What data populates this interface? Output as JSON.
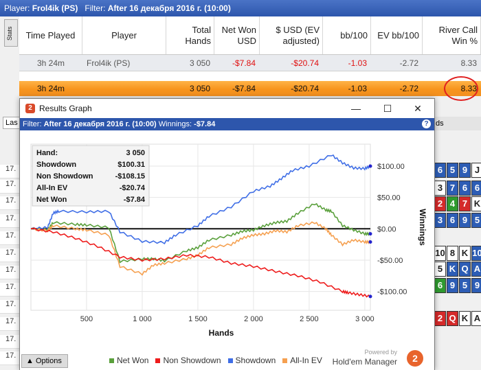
{
  "header": {
    "player_label": "Player:",
    "player": "Frol4ik (PS)",
    "filter_label": "Filter:",
    "filter": "After 16 декабря 2016 г. (10:00)"
  },
  "side_tab": "Stats",
  "stats_table": {
    "columns": [
      "Time Played",
      "Player",
      "Total Hands",
      "Net Won USD",
      "$ USD (EV adjusted)",
      "bb/100",
      "EV bb/100",
      "River Call Win %"
    ],
    "player_row": [
      "3h 24m",
      "Frol4ik (PS)",
      "3 050",
      "-$7.84",
      "-$20.74",
      "-1.03",
      "-2.72",
      "8.33"
    ],
    "total_row": [
      "3h 24m",
      "",
      "3 050",
      "-$7.84",
      "-$20.74",
      "-1.03",
      "-2.72",
      "8.33"
    ]
  },
  "background": {
    "las_label": "Las",
    "row_label": "17.",
    "right_label": "ds",
    "cards": [
      [
        {
          "t": "6",
          "c": "b"
        },
        {
          "t": "5",
          "c": "b"
        },
        {
          "t": "9",
          "c": "b"
        },
        {
          "t": "J",
          "c": "w"
        }
      ],
      [
        {
          "t": "3",
          "c": "w"
        },
        {
          "t": "7",
          "c": "b"
        },
        {
          "t": "6",
          "c": "b"
        },
        {
          "t": "6",
          "c": "b"
        }
      ],
      [
        {
          "t": "2",
          "c": "r"
        },
        {
          "t": "4",
          "c": "g"
        },
        {
          "t": "7",
          "c": "r"
        },
        {
          "t": "K",
          "c": "w"
        }
      ],
      [
        {
          "t": "3",
          "c": "b"
        },
        {
          "t": "6",
          "c": "b"
        },
        {
          "t": "9",
          "c": "b"
        },
        {
          "t": "5",
          "c": "b"
        }
      ],
      [
        {
          "t": "10",
          "c": "w"
        },
        {
          "t": "8",
          "c": "w"
        },
        {
          "t": "K",
          "c": "w"
        },
        {
          "t": "10",
          "c": "b"
        }
      ],
      [
        {
          "t": "5",
          "c": "w"
        },
        {
          "t": "K",
          "c": "b"
        },
        {
          "t": "Q",
          "c": "b"
        },
        {
          "t": "A",
          "c": "b"
        }
      ],
      [
        {
          "t": "6",
          "c": "g"
        },
        {
          "t": "9",
          "c": "b"
        },
        {
          "t": "5",
          "c": "b"
        },
        {
          "t": "9",
          "c": "b"
        }
      ],
      [
        {
          "t": "2",
          "c": "r"
        },
        {
          "t": "Q",
          "c": "r"
        },
        {
          "t": "K",
          "c": "w"
        },
        {
          "t": "A",
          "c": "w"
        }
      ]
    ]
  },
  "results_window": {
    "title": "Results Graph",
    "logo_glyph": "2",
    "controls": [
      "—",
      "☐",
      "✕"
    ],
    "filter_label": "Filter:",
    "filter_value": "After 16 декабря 2016 г. (10:00)",
    "winnings_label": "Winnings:",
    "winnings_value": "-$7.84",
    "help_glyph": "?",
    "summary": [
      {
        "label": "Hand:",
        "value": "3 050"
      },
      {
        "label": "Showdown",
        "value": "$100.31"
      },
      {
        "label": "Non Showdown",
        "value": "-$108.15"
      },
      {
        "label": "All-In EV",
        "value": "-$20.74"
      },
      {
        "label": "Net Won",
        "value": "-$7.84"
      }
    ],
    "options_label": "Options",
    "legend": [
      {
        "name": "Net Won",
        "color": "#5aa03c"
      },
      {
        "name": "Non Showdown",
        "color": "#ee1c1c"
      },
      {
        "name": "Showdown",
        "color": "#3f6ee6"
      },
      {
        "name": "All-In EV",
        "color": "#f5a050"
      }
    ],
    "powered_by": "Powered by",
    "brand_name": "Hold'em Manager",
    "brand_logo": "2"
  },
  "chart_data": {
    "type": "line",
    "xlabel": "Hands",
    "ylabel": "Winnings",
    "xlim": [
      0,
      3050
    ],
    "ylim": [
      -130,
      135
    ],
    "x_ticks": [
      500,
      1000,
      1500,
      2000,
      2500,
      3000
    ],
    "x_tick_labels": [
      "500",
      "1 000",
      "1 500",
      "2 000",
      "2 500",
      "3 000"
    ],
    "y_ticks": [
      100,
      50,
      0,
      -50,
      -100
    ],
    "y_tick_labels": [
      "$100.00",
      "$50.00",
      "$0.00",
      "-$50.00",
      "-$100.00"
    ],
    "series": [
      {
        "name": "Showdown",
        "color": "#3f6ee6",
        "x": [
          0,
          150,
          200,
          250,
          500,
          700,
          800,
          1000,
          1200,
          1300,
          1500,
          1600,
          1800,
          2000,
          2150,
          2250,
          2350,
          2500,
          2700,
          2800,
          2900,
          3000,
          3050
        ],
        "y": [
          0,
          2,
          25,
          28,
          27,
          28,
          -5,
          -20,
          -22,
          -10,
          5,
          20,
          35,
          60,
          68,
          80,
          93,
          100,
          118,
          105,
          97,
          96,
          100
        ]
      },
      {
        "name": "Net Won",
        "color": "#5aa03c",
        "x": [
          0,
          150,
          200,
          400,
          500,
          700,
          800,
          1000,
          1100,
          1200,
          1400,
          1500,
          1600,
          1800,
          1900,
          2000,
          2100,
          2200,
          2300,
          2400,
          2550,
          2650,
          2700,
          2800,
          2900,
          3000,
          3050
        ],
        "y": [
          0,
          -2,
          10,
          7,
          6,
          2,
          -52,
          -48,
          -48,
          -51,
          -35,
          -30,
          -18,
          -10,
          -4,
          -2,
          5,
          10,
          12,
          25,
          40,
          30,
          28,
          5,
          -2,
          -8,
          -8
        ]
      },
      {
        "name": "All-In EV",
        "color": "#f5a050",
        "x": [
          0,
          150,
          200,
          400,
          500,
          700,
          800,
          1000,
          1100,
          1200,
          1400,
          1500,
          1600,
          1800,
          1900,
          2000,
          2100,
          2200,
          2300,
          2400,
          2550,
          2650,
          2700,
          2800,
          2900,
          3000,
          3050
        ],
        "y": [
          0,
          -3,
          5,
          0,
          -2,
          -10,
          -60,
          -72,
          -58,
          -55,
          -48,
          -42,
          -30,
          -25,
          -15,
          -10,
          -8,
          -3,
          -5,
          5,
          10,
          0,
          -10,
          -25,
          -18,
          -21,
          -21
        ]
      },
      {
        "name": "Non Showdown",
        "color": "#ee1c1c",
        "x": [
          0,
          200,
          400,
          600,
          800,
          1000,
          1200,
          1400,
          1600,
          1800,
          2000,
          2200,
          2400,
          2600,
          2800,
          2850,
          2950,
          3050
        ],
        "y": [
          0,
          -5,
          -15,
          -28,
          -45,
          -50,
          -48,
          -42,
          -45,
          -55,
          -60,
          -68,
          -75,
          -85,
          -100,
          -102,
          -105,
          -108
        ]
      }
    ]
  }
}
